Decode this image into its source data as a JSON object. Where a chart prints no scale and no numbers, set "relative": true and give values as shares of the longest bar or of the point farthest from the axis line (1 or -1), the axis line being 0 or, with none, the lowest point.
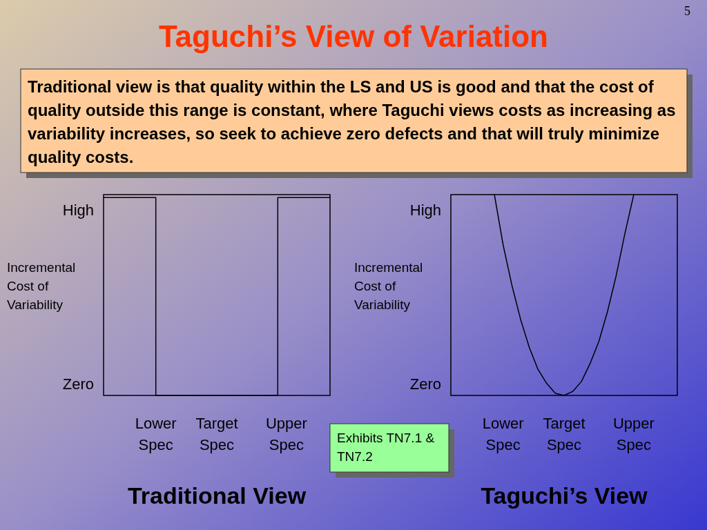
{
  "chart_data": [
    {
      "type": "other",
      "title": "Taguchi’s View of Variation",
      "annotations": [
        "Traditional view is that quality within the LS and US is good and that the cost of quality outside this range is constant, where Taguchi views costs as increasing as variability increases, so seek to achieve zero defects and that will truly minimize quality costs.",
        "Exhibits TN7.1 & TN7.2",
        "5"
      ]
    },
    {
      "type": "step",
      "relative": true,
      "title": "Traditional View",
      "ylabel": "Incremental Cost of Variability",
      "annotations": [
        "High",
        "Zero"
      ],
      "categories": [
        null,
        null,
        null,
        null,
        null,
        null,
        "Lower Spec",
        null,
        null,
        null,
        null,
        null,
        null,
        "Target Spec",
        null,
        null,
        null,
        null,
        null,
        null,
        null,
        "Upper Spec",
        null,
        null,
        null,
        null,
        null
      ],
      "series": [
        {
          "color": "#000000",
          "values": [
            1,
            1,
            1,
            1,
            1,
            1,
            0,
            0,
            0,
            0,
            0,
            0,
            0,
            0,
            0,
            0,
            0,
            0,
            0,
            0,
            1,
            1,
            1,
            1,
            1,
            1,
            1
          ]
        }
      ]
    },
    {
      "type": "line",
      "relative": true,
      "title": "Taguchi’s View",
      "ylabel": "Incremental Cost of Variability",
      "annotations": [
        "High",
        "Zero"
      ],
      "categories": [
        null,
        null,
        null,
        null,
        null,
        null,
        "Lower Spec",
        null,
        null,
        null,
        null,
        null,
        null,
        "Target Spec",
        null,
        null,
        null,
        null,
        null,
        null,
        null,
        "Upper Spec",
        null,
        null,
        null,
        null,
        null
      ],
      "series": [
        {
          "color": "#000000",
          "values": [
            null,
            null,
            null,
            null,
            null,
            1,
            0.75,
            0.55,
            0.38,
            0.24,
            0.13,
            0.06,
            0.01,
            0,
            0.02,
            0.07,
            0.16,
            0.27,
            0.42,
            0.6,
            0.81,
            1,
            null,
            null,
            null,
            null,
            null
          ]
        }
      ]
    }
  ]
}
